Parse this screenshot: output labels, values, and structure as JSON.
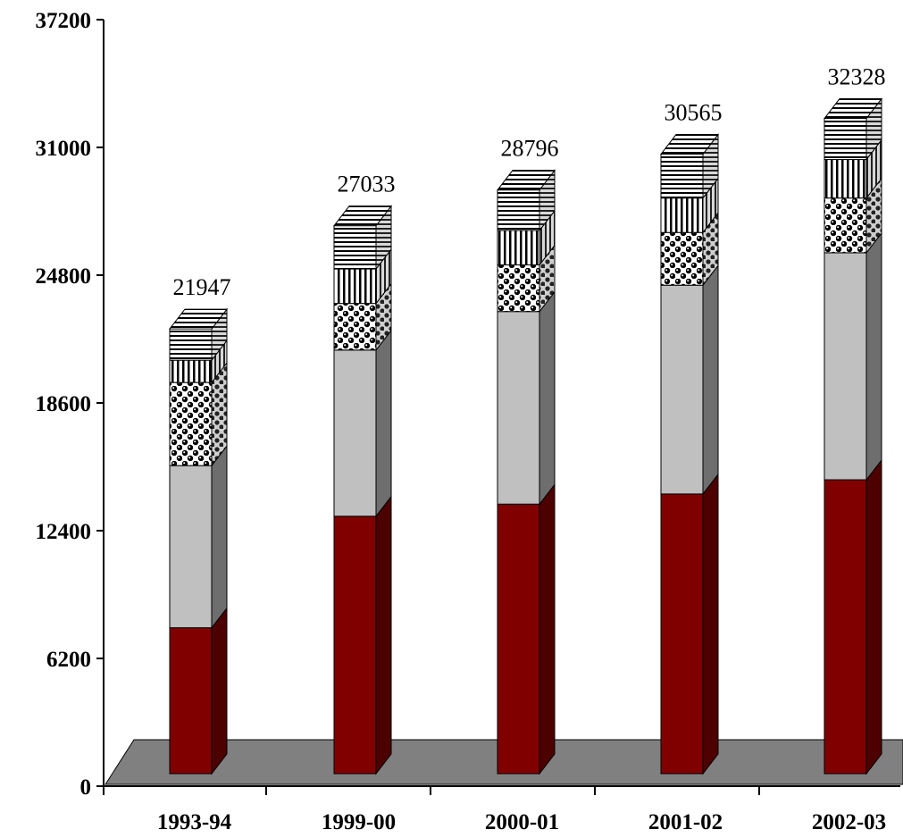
{
  "chart_data": {
    "type": "bar",
    "stacked": true,
    "three_d": true,
    "title": "",
    "xlabel": "",
    "ylabel": "",
    "ylim": [
      0,
      37200
    ],
    "yticks": [
      0,
      6200,
      12400,
      18600,
      24800,
      31000,
      37200
    ],
    "ytick_labels": [
      "0",
      "6200",
      "12400",
      "18600",
      "24800",
      "31000",
      "37200"
    ],
    "categories": [
      "1993-94",
      "1999-00",
      "2000-01",
      "2001-02",
      "2002-03"
    ],
    "series": [
      {
        "values": [
          7200,
          12700,
          13300,
          13800,
          14500
        ],
        "color": "#800000",
        "pattern": "solid"
      },
      {
        "values": [
          8000,
          8200,
          9500,
          10300,
          11200
        ],
        "color": "#c0c0c0",
        "pattern": "solid"
      },
      {
        "values": [
          4100,
          2300,
          2300,
          2600,
          2700
        ],
        "color": "#ffffff",
        "pattern": "dots"
      },
      {
        "values": [
          1100,
          1700,
          1700,
          1700,
          1900
        ],
        "color": "#ffffff",
        "pattern": "vertical-lines"
      },
      {
        "values": [
          1547,
          2133,
          1996,
          2165,
          2028
        ],
        "color": "#ffffff",
        "pattern": "horizontal-lines"
      }
    ],
    "totals": [
      21947,
      27033,
      28796,
      30565,
      32328
    ],
    "total_labels": [
      "21947",
      "27033",
      "28796",
      "30565",
      "32328"
    ],
    "grid": false,
    "legend": "none",
    "colors": {
      "floor": "#808080",
      "side_dark": "#4d0000",
      "side_gray": "#6e6e6e",
      "axis": "#000000"
    }
  }
}
